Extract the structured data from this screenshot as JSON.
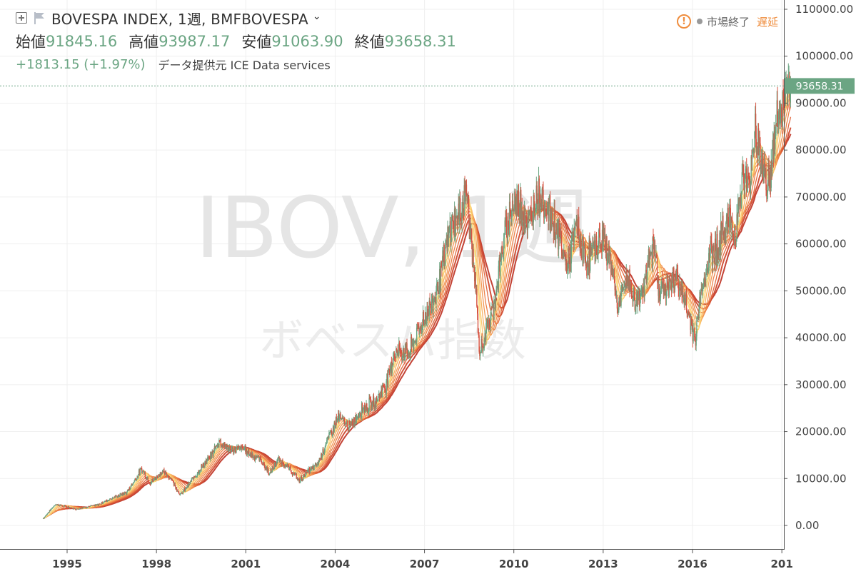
{
  "header": {
    "title": "BOVESPA INDEX, 1週, BMFBOVESPA",
    "ohlc": [
      {
        "label": "始値",
        "value": "91845.16"
      },
      {
        "label": "高値",
        "value": "93987.17"
      },
      {
        "label": "安値",
        "value": "91063.90"
      },
      {
        "label": "終値",
        "value": "93658.31"
      }
    ],
    "change": "+1813.15 (+1.97%)",
    "data_source": "データ提供元 ICE Data services",
    "market_status": "市場終了",
    "delay_label": "遅延"
  },
  "colors": {
    "up": "#6ba583",
    "down": "#d75442",
    "warning": "#ef8d3e",
    "ma_ribbon": [
      "#c0392b",
      "#d04a2f",
      "#df6236",
      "#ec7b3f",
      "#f2944c",
      "#f7ad5a",
      "#fbc76a",
      "#fde07a"
    ]
  },
  "chart_data": {
    "type": "candlestick",
    "symbol": "IBOV",
    "interval": "1週",
    "watermark": "IBOV, 1週",
    "watermark_sub": "ボベスパ指数",
    "last_price_label": "93658.31",
    "last_price": 93658.31,
    "y_ticks": [
      "110000.00",
      "100000.00",
      "90000.00",
      "80000.00",
      "70000.00",
      "60000.00",
      "50000.00",
      "40000.00",
      "30000.00",
      "20000.00",
      "10000.00",
      "0.00"
    ],
    "x_ticks": [
      "1995",
      "1998",
      "2001",
      "2004",
      "2007",
      "2010",
      "2013",
      "2016",
      "201"
    ],
    "ylim": [
      0,
      110000
    ],
    "xlim": [
      1993.06,
      2019.75
    ],
    "grid": true,
    "approx_close": [
      [
        1994.2,
        1500
      ],
      [
        1994.6,
        4500
      ],
      [
        1995.0,
        4000
      ],
      [
        1995.3,
        3500
      ],
      [
        1995.7,
        4000
      ],
      [
        1996.0,
        4300
      ],
      [
        1996.5,
        5800
      ],
      [
        1997.0,
        7000
      ],
      [
        1997.5,
        12000
      ],
      [
        1997.8,
        9000
      ],
      [
        1998.2,
        11500
      ],
      [
        1998.5,
        10000
      ],
      [
        1998.8,
        6500
      ],
      [
        1999.0,
        8000
      ],
      [
        1999.4,
        11500
      ],
      [
        1999.8,
        14500
      ],
      [
        2000.1,
        18000
      ],
      [
        2000.5,
        16000
      ],
      [
        2000.9,
        16500
      ],
      [
        2001.2,
        15000
      ],
      [
        2001.5,
        14000
      ],
      [
        2001.8,
        11000
      ],
      [
        2002.1,
        14000
      ],
      [
        2002.4,
        12500
      ],
      [
        2002.8,
        9500
      ],
      [
        2003.0,
        11000
      ],
      [
        2003.4,
        13000
      ],
      [
        2003.8,
        19000
      ],
      [
        2004.1,
        23000
      ],
      [
        2004.5,
        21000
      ],
      [
        2004.9,
        25000
      ],
      [
        2005.3,
        26000
      ],
      [
        2005.7,
        30000
      ],
      [
        2006.0,
        37000
      ],
      [
        2006.5,
        37000
      ],
      [
        2006.9,
        43000
      ],
      [
        2007.3,
        48000
      ],
      [
        2007.6,
        55000
      ],
      [
        2007.9,
        64000
      ],
      [
        2008.2,
        66000
      ],
      [
        2008.4,
        72000
      ],
      [
        2008.7,
        52000
      ],
      [
        2008.85,
        36000
      ],
      [
        2009.0,
        40000
      ],
      [
        2009.3,
        46000
      ],
      [
        2009.6,
        58000
      ],
      [
        2009.9,
        68000
      ],
      [
        2010.2,
        69000
      ],
      [
        2010.5,
        64000
      ],
      [
        2010.8,
        71000
      ],
      [
        2011.1,
        68000
      ],
      [
        2011.5,
        62000
      ],
      [
        2011.8,
        55000
      ],
      [
        2012.1,
        64000
      ],
      [
        2012.4,
        56000
      ],
      [
        2012.7,
        59000
      ],
      [
        2013.0,
        61000
      ],
      [
        2013.3,
        55000
      ],
      [
        2013.5,
        46000
      ],
      [
        2013.8,
        53000
      ],
      [
        2014.1,
        47000
      ],
      [
        2014.4,
        52000
      ],
      [
        2014.7,
        60000
      ],
      [
        2014.9,
        50000
      ],
      [
        2015.2,
        51000
      ],
      [
        2015.5,
        53000
      ],
      [
        2015.8,
        46000
      ],
      [
        2016.1,
        40000
      ],
      [
        2016.3,
        50000
      ],
      [
        2016.6,
        58000
      ],
      [
        2016.9,
        60000
      ],
      [
        2017.2,
        66000
      ],
      [
        2017.4,
        62000
      ],
      [
        2017.7,
        74000
      ],
      [
        2017.9,
        72000
      ],
      [
        2018.1,
        85000
      ],
      [
        2018.4,
        75000
      ],
      [
        2018.6,
        73000
      ],
      [
        2018.8,
        86000
      ],
      [
        2019.0,
        88000
      ],
      [
        2019.2,
        94000
      ],
      [
        2019.3,
        93658
      ]
    ]
  }
}
